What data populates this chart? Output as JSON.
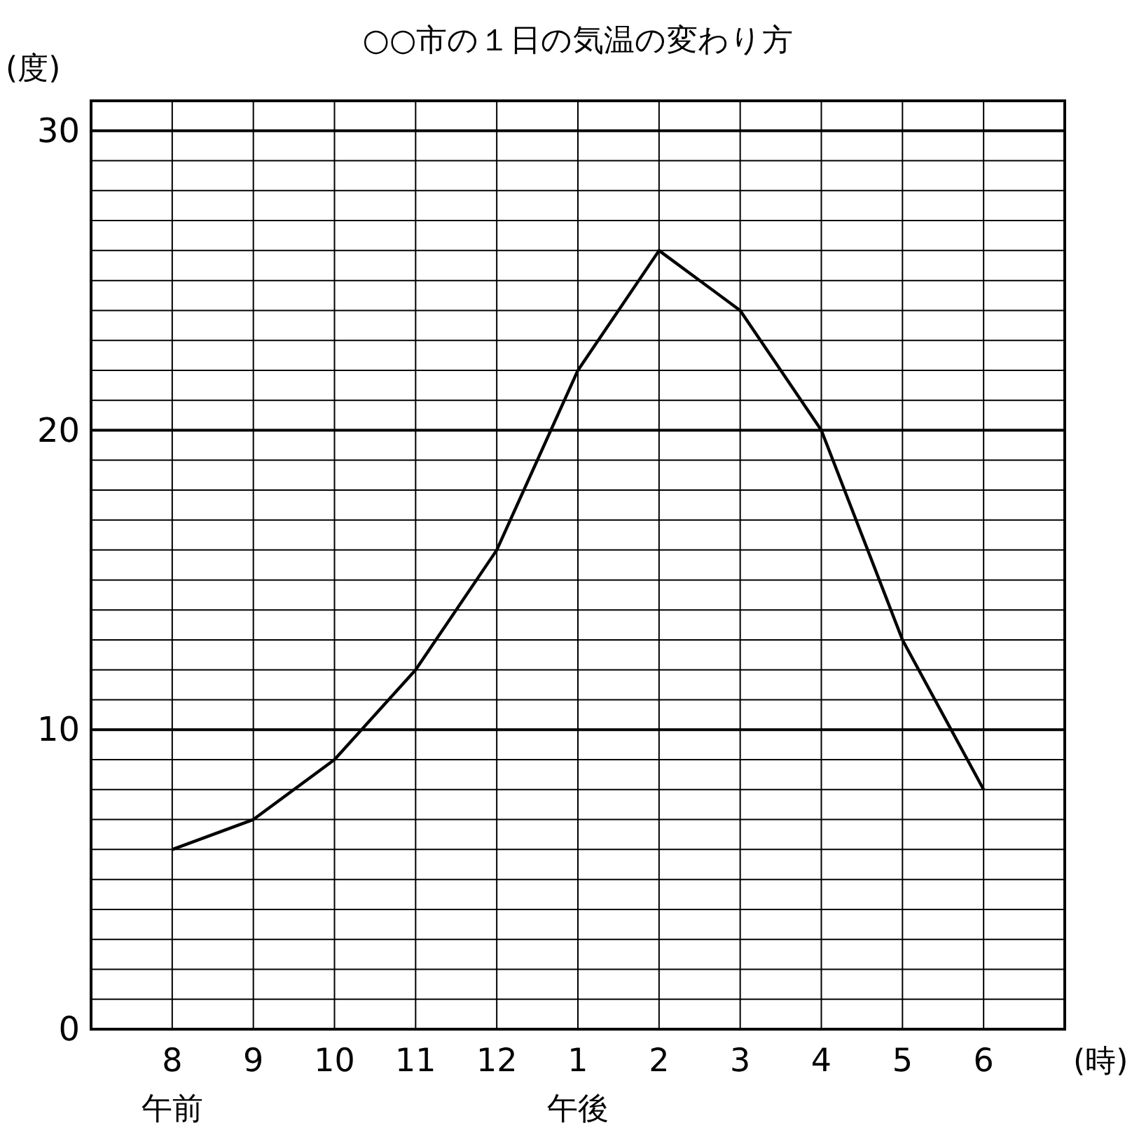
{
  "chart_data": {
    "type": "line",
    "title": "○○市の１日の気温の変わり方",
    "ylabel": "(度)",
    "xlabel": "(時)",
    "categories": [
      "8",
      "9",
      "10",
      "11",
      "12",
      "1",
      "2",
      "3",
      "4",
      "5",
      "6"
    ],
    "series": [
      {
        "color": "#000000",
        "values": [
          6,
          7,
          9,
          12,
          16,
          22,
          26,
          24,
          20,
          13,
          8
        ]
      }
    ],
    "ylim": [
      0,
      31
    ],
    "yticks": [
      0,
      {
        "value": 1,
        "label": null
      },
      {
        "value": 2,
        "label": null
      },
      {
        "value": 3,
        "label": null
      },
      {
        "value": 4,
        "label": null
      },
      {
        "value": 5,
        "label": null
      },
      {
        "value": 6,
        "label": null
      },
      {
        "value": 7,
        "label": null
      },
      {
        "value": 8,
        "label": null
      },
      {
        "value": 9,
        "label": null
      },
      10,
      {
        "value": 11,
        "label": null
      },
      {
        "value": 12,
        "label": null
      },
      {
        "value": 13,
        "label": null
      },
      {
        "value": 14,
        "label": null
      },
      {
        "value": 15,
        "label": null
      },
      {
        "value": 16,
        "label": null
      },
      {
        "value": 17,
        "label": null
      },
      {
        "value": 18,
        "label": null
      },
      {
        "value": 19,
        "label": null
      },
      20,
      {
        "value": 21,
        "label": null
      },
      {
        "value": 22,
        "label": null
      },
      {
        "value": 23,
        "label": null
      },
      {
        "value": 24,
        "label": null
      },
      {
        "value": 25,
        "label": null
      },
      {
        "value": 26,
        "label": null
      },
      {
        "value": 27,
        "label": null
      },
      {
        "value": 28,
        "label": null
      },
      {
        "value": 29,
        "label": null
      },
      30
    ],
    "grid": true,
    "marker": "none",
    "line_style": "solid",
    "annotations": [
      "午前",
      "午後"
    ]
  }
}
